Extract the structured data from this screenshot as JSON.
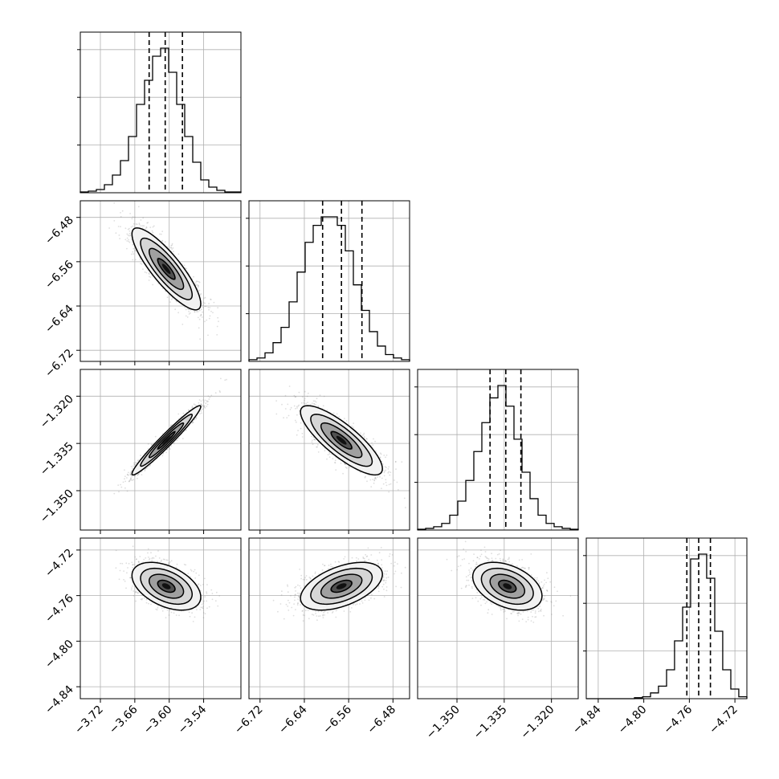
{
  "chart_data": {
    "type": "corner",
    "grid": true,
    "parameters": [
      {
        "mean": -3.605,
        "sigma": 0.03,
        "range": [
          -3.755,
          -3.475
        ],
        "ticks": [
          -3.72,
          -3.66,
          -3.6,
          -3.54
        ],
        "tick_labels": [
          "−3.72",
          "−3.66",
          "−3.60",
          "−3.54"
        ],
        "quantiles": [
          -3.635,
          -3.607,
          -3.577
        ]
      },
      {
        "mean": -6.573,
        "sigma": 0.037,
        "range": [
          -6.74,
          -6.45
        ],
        "ticks": [
          -6.72,
          -6.64,
          -6.56,
          -6.48
        ],
        "tick_labels": [
          "−6.72",
          "−6.64",
          "−6.56",
          "−6.48"
        ],
        "quantiles": [
          -6.607,
          -6.573,
          -6.536
        ]
      },
      {
        "mean": -1.334,
        "sigma": 0.0055,
        "range": [
          -1.3625,
          -1.3115
        ],
        "ticks": [
          -1.35,
          -1.335,
          -1.32
        ],
        "tick_labels": [
          "−1.350",
          "−1.335",
          "−1.320"
        ],
        "quantiles": [
          -1.3395,
          -1.3345,
          -1.3297
        ]
      },
      {
        "mean": -4.7518,
        "sigma": 0.0105,
        "range": [
          -4.8505,
          -4.7095
        ],
        "ticks": [
          -4.84,
          -4.8,
          -4.76,
          -4.72
        ],
        "tick_labels": [
          "−4.84",
          "−4.80",
          "−4.76",
          "−4.72"
        ],
        "quantiles": [
          -4.7622,
          -4.7518,
          -4.7415
        ]
      }
    ],
    "histograms": [
      {
        "param": 0,
        "bin_edges": [
          -3.755,
          -3.741,
          -3.727,
          -3.713,
          -3.699,
          -3.685,
          -3.671,
          -3.657,
          -3.643,
          -3.629,
          -3.615,
          -3.601,
          -3.587,
          -3.573,
          -3.559,
          -3.545,
          -3.531,
          -3.517,
          -3.503,
          -3.489,
          -3.475
        ],
        "counts": [
          1,
          2,
          4,
          10,
          22,
          40,
          70,
          110,
          140,
          170,
          180,
          150,
          110,
          70,
          38,
          16,
          7,
          3,
          1,
          1
        ]
      },
      {
        "param": 1,
        "bin_edges": [
          -6.74,
          -6.7255,
          -6.711,
          -6.6965,
          -6.682,
          -6.6675,
          -6.653,
          -6.6385,
          -6.624,
          -6.6095,
          -6.595,
          -6.5805,
          -6.566,
          -6.5515,
          -6.537,
          -6.5225,
          -6.508,
          -6.4935,
          -6.479,
          -6.4645,
          -6.45
        ],
        "counts": [
          2,
          4,
          10,
          22,
          40,
          70,
          105,
          140,
          160,
          170,
          170,
          160,
          130,
          90,
          60,
          35,
          18,
          8,
          4,
          2
        ]
      },
      {
        "param": 2,
        "bin_edges": [
          -1.3625,
          -1.35995,
          -1.3574,
          -1.35485,
          -1.3523,
          -1.34975,
          -1.3472,
          -1.34465,
          -1.3421,
          -1.33955,
          -1.337,
          -1.33445,
          -1.3319,
          -1.32935,
          -1.3268,
          -1.32425,
          -1.3217,
          -1.31915,
          -1.3166,
          -1.31405,
          -1.3115
        ],
        "counts": [
          1,
          2,
          4,
          8,
          18,
          35,
          60,
          95,
          130,
          160,
          175,
          150,
          110,
          70,
          38,
          18,
          8,
          4,
          2,
          1
        ]
      },
      {
        "param": 3,
        "bin_edges": [
          -4.8505,
          -4.8435,
          -4.8364,
          -4.8294,
          -4.8223,
          -4.8153,
          -4.8082,
          -4.8011,
          -4.7941,
          -4.7871,
          -4.78,
          -4.773,
          -4.7659,
          -4.7589,
          -4.7518,
          -4.7448,
          -4.7377,
          -4.7307,
          -4.7236,
          -4.7166,
          -4.7095
        ],
        "counts": [
          0,
          0,
          0,
          0,
          0,
          0,
          1,
          2,
          6,
          13,
          30,
          60,
          95,
          145,
          150,
          125,
          70,
          30,
          10,
          2
        ]
      }
    ],
    "pairs": [
      {
        "row": 1,
        "col": 0,
        "correlation": -0.85
      },
      {
        "row": 2,
        "col": 0,
        "correlation": 0.97
      },
      {
        "row": 2,
        "col": 1,
        "correlation": -0.82
      },
      {
        "row": 3,
        "col": 0,
        "correlation": -0.45
      },
      {
        "row": 3,
        "col": 1,
        "correlation": 0.5
      },
      {
        "row": 3,
        "col": 2,
        "correlation": -0.4
      }
    ]
  }
}
